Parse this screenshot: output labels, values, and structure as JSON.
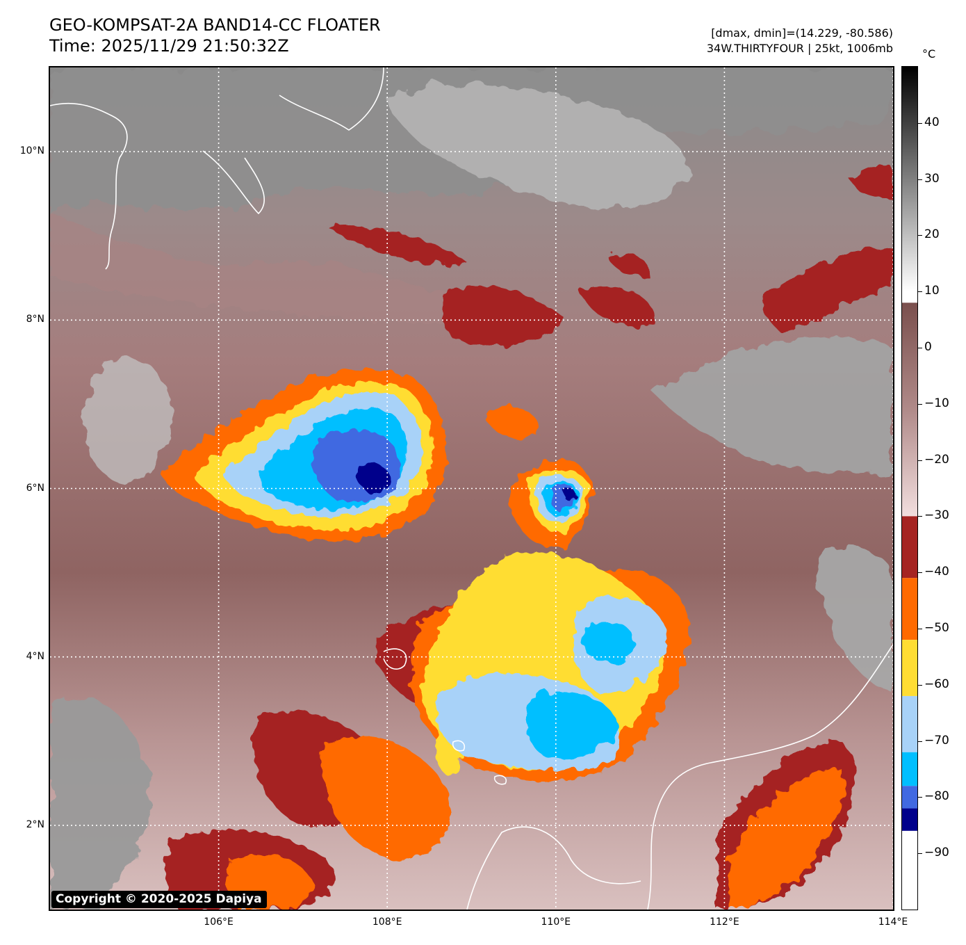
{
  "header": {
    "title_line1": "GEO-KOMPSAT-2A BAND14-CC FLOATER",
    "title_line2": "Time: 2025/11/29 21:50:32Z",
    "stats": "[dmax, dmin]=(14.229, -80.586)",
    "storm": "34W.THIRTYFOUR | 25kt, 1006mb"
  },
  "map": {
    "lon_range": [
      104,
      114
    ],
    "lat_range": [
      1,
      11
    ],
    "lat_ticks": [
      {
        "value": 2,
        "label": "2°N"
      },
      {
        "value": 4,
        "label": "4°N"
      },
      {
        "value": 6,
        "label": "6°N"
      },
      {
        "value": 8,
        "label": "8°N"
      },
      {
        "value": 10,
        "label": "10°N"
      }
    ],
    "lon_ticks": [
      {
        "value": 106,
        "label": "106°E"
      },
      {
        "value": 108,
        "label": "108°E"
      },
      {
        "value": 110,
        "label": "110°E"
      },
      {
        "value": 112,
        "label": "112°E"
      },
      {
        "value": 114,
        "label": "114°E"
      }
    ],
    "colors": {
      "cloud_free_base": "#8e6664",
      "clear_gray": "#9a9a9a",
      "minus30_40": "#a52422",
      "minus40_50": "#ff6a00",
      "minus50_60": "#ffdd33",
      "minus60_70": "#a8d2f8",
      "minus70_75": "#00bfff",
      "minus75_80": "#4169e1",
      "minus80_85": "#00008b",
      "coastline": "#ffffff"
    }
  },
  "colorbar": {
    "unit": "°C",
    "range": [
      -100,
      50
    ],
    "ticks": [
      {
        "value": 40,
        "label": "40"
      },
      {
        "value": 30,
        "label": "30"
      },
      {
        "value": 20,
        "label": "20"
      },
      {
        "value": 10,
        "label": "10"
      },
      {
        "value": 0,
        "label": "0"
      },
      {
        "value": -10,
        "label": "−10"
      },
      {
        "value": -20,
        "label": "−20"
      },
      {
        "value": -30,
        "label": "−30"
      },
      {
        "value": -40,
        "label": "−40"
      },
      {
        "value": -50,
        "label": "−50"
      },
      {
        "value": -60,
        "label": "−60"
      },
      {
        "value": -70,
        "label": "−70"
      },
      {
        "value": -80,
        "label": "−80"
      },
      {
        "value": -90,
        "label": "−90"
      }
    ]
  },
  "copyright": "Copyright © 2020-2025 Dapiya"
}
